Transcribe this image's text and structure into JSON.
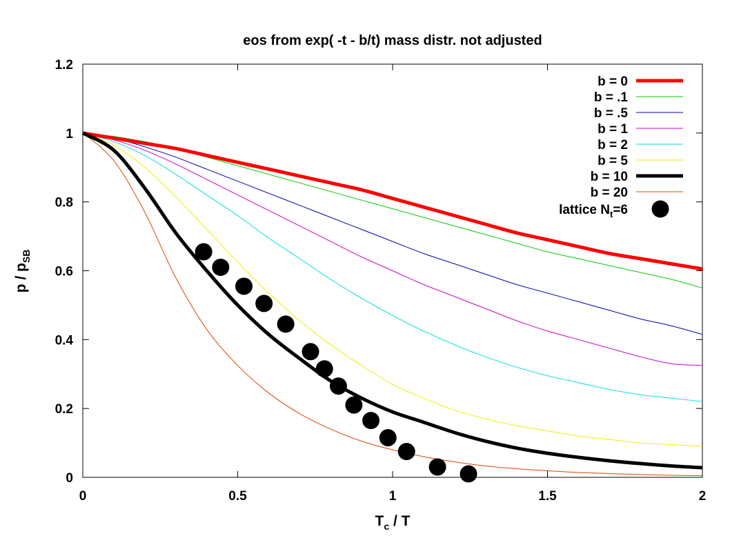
{
  "chart_data": {
    "type": "line",
    "title": "eos from exp( -t - b/t) mass distr. not adjusted",
    "xlabel": {
      "main": "T",
      "sub": "c",
      "tail": " / T"
    },
    "ylabel": {
      "main": "p / p",
      "sub": "SB"
    },
    "xlim": [
      0,
      2
    ],
    "ylim": [
      0,
      1.2
    ],
    "x_ticks": [
      0,
      0.5,
      1,
      1.5,
      2
    ],
    "x_tick_labels": [
      "0",
      "0.5",
      "1",
      "1.5",
      "2"
    ],
    "y_ticks": [
      0,
      0.2,
      0.4,
      0.6,
      0.8,
      1,
      1.2
    ],
    "y_tick_labels": [
      "0",
      "0.2",
      "0.4",
      "0.6",
      "0.8",
      "1",
      "1.2"
    ],
    "grid": false,
    "legend_position": "top-right",
    "x": [
      0,
      0.1,
      0.2,
      0.3,
      0.4,
      0.5,
      0.6,
      0.7,
      0.8,
      0.9,
      1.0,
      1.1,
      1.2,
      1.3,
      1.4,
      1.5,
      1.6,
      1.7,
      1.8,
      1.9,
      2.0
    ],
    "series": [
      {
        "name": "b =  0",
        "color": "#ff0000",
        "width": 5,
        "values": [
          1.0,
          0.985,
          0.97,
          0.955,
          0.935,
          0.915,
          0.895,
          0.875,
          0.855,
          0.835,
          0.81,
          0.785,
          0.76,
          0.735,
          0.71,
          0.69,
          0.67,
          0.65,
          0.635,
          0.62,
          0.605
        ]
      },
      {
        "name": "b = .1",
        "color": "#00cc00",
        "width": 1,
        "values": [
          1.0,
          0.99,
          0.975,
          0.955,
          0.93,
          0.905,
          0.88,
          0.855,
          0.83,
          0.805,
          0.78,
          0.755,
          0.73,
          0.705,
          0.68,
          0.655,
          0.635,
          0.615,
          0.595,
          0.575,
          0.55
        ]
      },
      {
        "name": "b = .5",
        "color": "#0000aa",
        "width": 1,
        "values": [
          1.0,
          0.985,
          0.96,
          0.93,
          0.895,
          0.86,
          0.825,
          0.79,
          0.755,
          0.72,
          0.685,
          0.65,
          0.62,
          0.59,
          0.56,
          0.535,
          0.51,
          0.485,
          0.46,
          0.44,
          0.415
        ]
      },
      {
        "name": "b =  1",
        "color": "#cc00cc",
        "width": 1,
        "values": [
          1.0,
          0.98,
          0.95,
          0.91,
          0.865,
          0.82,
          0.775,
          0.73,
          0.685,
          0.64,
          0.6,
          0.56,
          0.525,
          0.49,
          0.455,
          0.425,
          0.4,
          0.375,
          0.35,
          0.33,
          0.325
        ]
      },
      {
        "name": "b =  2",
        "color": "#00dddd",
        "width": 1,
        "values": [
          1.0,
          0.975,
          0.935,
          0.88,
          0.82,
          0.76,
          0.695,
          0.635,
          0.575,
          0.52,
          0.47,
          0.425,
          0.385,
          0.35,
          0.32,
          0.295,
          0.275,
          0.255,
          0.24,
          0.23,
          0.22
        ]
      },
      {
        "name": "b =  5",
        "color": "#eeee00",
        "width": 1,
        "values": [
          1.0,
          0.965,
          0.9,
          0.815,
          0.72,
          0.625,
          0.535,
          0.455,
          0.385,
          0.325,
          0.27,
          0.23,
          0.195,
          0.17,
          0.15,
          0.135,
          0.12,
          0.11,
          0.1,
          0.095,
          0.09
        ]
      },
      {
        "name": "b = 10",
        "color": "#000000",
        "width": 5,
        "values": [
          1.0,
          0.95,
          0.84,
          0.71,
          0.6,
          0.5,
          0.415,
          0.345,
          0.28,
          0.23,
          0.19,
          0.16,
          0.13,
          0.105,
          0.085,
          0.07,
          0.058,
          0.048,
          0.04,
          0.033,
          0.028
        ]
      },
      {
        "name": "b = 20",
        "color": "#dd4400",
        "width": 1,
        "values": [
          1.0,
          0.92,
          0.77,
          0.58,
          0.43,
          0.325,
          0.245,
          0.185,
          0.14,
          0.105,
          0.08,
          0.06,
          0.045,
          0.033,
          0.025,
          0.019,
          0.014,
          0.011,
          0.008,
          0.006,
          0.005
        ]
      }
    ],
    "points": {
      "name_main": "lattice N",
      "name_sub": "t",
      "name_tail": "=6",
      "color": "#000000",
      "x": [
        0.39,
        0.445,
        0.52,
        0.585,
        0.655,
        0.735,
        0.78,
        0.825,
        0.875,
        0.93,
        0.985,
        1.045,
        1.145,
        1.245
      ],
      "y": [
        0.655,
        0.61,
        0.555,
        0.505,
        0.445,
        0.365,
        0.315,
        0.265,
        0.21,
        0.165,
        0.115,
        0.075,
        0.03,
        0.01
      ]
    }
  }
}
